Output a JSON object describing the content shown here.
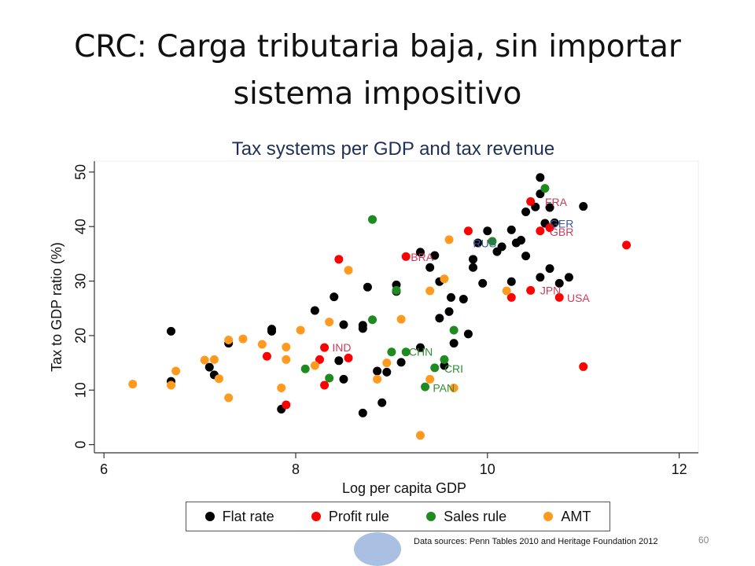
{
  "slide": {
    "title_line1": "CRC: Carga tributaria baja, sin importar",
    "title_line2": "sistema impositivo",
    "page_number": "60",
    "source": "Data sources: Penn Tables 2010 and Heritage Foundation 2012"
  },
  "chart_data": {
    "type": "scatter",
    "title": "Tax systems per GDP and tax revenue",
    "xlabel": "Log per capita GDP",
    "ylabel": "Tax to GDP ratio (%)",
    "xlim": [
      5.9,
      12.2
    ],
    "ylim": [
      -1.5,
      52
    ],
    "xticks": [
      6,
      8,
      10,
      12
    ],
    "yticks": [
      0,
      10,
      20,
      30,
      40,
      50
    ],
    "grid": false,
    "legend_position": "bottom",
    "series": [
      {
        "name": "Flat rate",
        "color": "#000000",
        "points": [
          [
            6.7,
            20.8
          ],
          [
            6.7,
            11.6
          ],
          [
            7.1,
            14.2
          ],
          [
            7.15,
            12.8
          ],
          [
            7.3,
            18.6
          ],
          [
            7.75,
            21.2
          ],
          [
            7.75,
            20.8
          ],
          [
            7.85,
            6.5
          ],
          [
            8.2,
            24.6
          ],
          [
            8.4,
            27.1
          ],
          [
            8.45,
            15.4
          ],
          [
            8.5,
            12
          ],
          [
            8.5,
            22
          ],
          [
            8.7,
            21.9
          ],
          [
            8.7,
            21.3
          ],
          [
            8.7,
            5.8
          ],
          [
            8.75,
            28.9
          ],
          [
            8.85,
            13.5
          ],
          [
            8.9,
            7.7
          ],
          [
            8.95,
            13.3
          ],
          [
            9.05,
            29.3
          ],
          [
            9.05,
            28.1
          ],
          [
            9.1,
            15.1
          ],
          [
            9.3,
            35.3
          ],
          [
            9.3,
            17.8
          ],
          [
            9.4,
            32.5
          ],
          [
            9.45,
            34.7
          ],
          [
            9.5,
            29.9
          ],
          [
            9.5,
            23.2
          ],
          [
            9.55,
            14.5
          ],
          [
            9.6,
            24.4
          ],
          [
            9.62,
            27
          ],
          [
            9.65,
            18.6
          ],
          [
            9.75,
            26.7
          ],
          [
            9.8,
            20.3
          ],
          [
            9.85,
            34
          ],
          [
            9.85,
            32.5
          ],
          [
            9.9,
            37
          ],
          [
            9.95,
            29.6
          ],
          [
            10,
            39.2
          ],
          [
            10.1,
            35.4
          ],
          [
            10.15,
            36.3
          ],
          [
            10.25,
            29.9
          ],
          [
            10.25,
            39.4
          ],
          [
            10.3,
            37
          ],
          [
            10.35,
            37.5
          ],
          [
            10.4,
            34.6
          ],
          [
            10.4,
            42.7
          ],
          [
            10.5,
            43.6
          ],
          [
            10.55,
            49
          ],
          [
            10.55,
            46
          ],
          [
            10.6,
            40.6
          ],
          [
            10.55,
            30.7
          ],
          [
            10.65,
            32.3
          ],
          [
            10.65,
            43.5
          ],
          [
            10.7,
            40.7
          ],
          [
            10.75,
            29.6
          ],
          [
            10.85,
            30.7
          ],
          [
            11,
            43.7
          ]
        ]
      },
      {
        "name": "Profit rule",
        "color": "#ff0000",
        "points": [
          [
            7.7,
            16.2
          ],
          [
            7.9,
            7.3
          ],
          [
            8.25,
            15.6
          ],
          [
            8.3,
            17.8
          ],
          [
            8.3,
            10.9
          ],
          [
            8.45,
            34
          ],
          [
            8.55,
            15.9
          ],
          [
            9.15,
            34.5
          ],
          [
            9.8,
            39.2
          ],
          [
            10.25,
            27
          ],
          [
            10.45,
            28.3
          ],
          [
            10.45,
            44.6
          ],
          [
            10.55,
            39.2
          ],
          [
            10.65,
            39.8
          ],
          [
            10.75,
            27
          ],
          [
            11,
            14.3
          ],
          [
            11.45,
            36.6
          ]
        ]
      },
      {
        "name": "Sales rule",
        "color": "#1f8a1f",
        "points": [
          [
            8.1,
            13.9
          ],
          [
            8.35,
            12.2
          ],
          [
            8.8,
            41.3
          ],
          [
            8.8,
            22.9
          ],
          [
            9.0,
            17
          ],
          [
            9.05,
            28.3
          ],
          [
            9.15,
            17
          ],
          [
            9.35,
            10.6
          ],
          [
            9.45,
            14.1
          ],
          [
            9.55,
            15.6
          ],
          [
            9.65,
            21
          ],
          [
            10.05,
            37.3
          ],
          [
            10.6,
            47
          ]
        ]
      },
      {
        "name": "AMT",
        "color": "#ff9a1f",
        "points": [
          [
            6.3,
            11.1
          ],
          [
            6.7,
            10.9
          ],
          [
            6.75,
            13.5
          ],
          [
            7.05,
            15.5
          ],
          [
            7.15,
            15.6
          ],
          [
            7.2,
            12.1
          ],
          [
            7.3,
            19.2
          ],
          [
            7.3,
            8.6
          ],
          [
            7.45,
            19.4
          ],
          [
            7.65,
            18.4
          ],
          [
            7.85,
            10.4
          ],
          [
            7.9,
            17.9
          ],
          [
            7.9,
            15.6
          ],
          [
            8.05,
            21
          ],
          [
            8.2,
            14.5
          ],
          [
            8.35,
            22.5
          ],
          [
            8.55,
            32
          ],
          [
            8.85,
            12
          ],
          [
            8.95,
            15
          ],
          [
            9.1,
            23
          ],
          [
            9.3,
            1.7
          ],
          [
            9.4,
            28.2
          ],
          [
            9.4,
            12
          ],
          [
            9.55,
            30.4
          ],
          [
            9.6,
            37.6
          ],
          [
            9.65,
            10.4
          ],
          [
            10.2,
            28.2
          ]
        ]
      }
    ],
    "annotations": [
      {
        "text": "FRA",
        "x": 10.6,
        "y": 44.5,
        "color": "#cc3b5a"
      },
      {
        "text": "GER",
        "x": 10.65,
        "y": 40.5,
        "color": "#3c5a9c"
      },
      {
        "text": "GBR",
        "x": 10.65,
        "y": 39.0,
        "color": "#cc3b5a"
      },
      {
        "text": "RUS",
        "x": 9.85,
        "y": 36.9,
        "color": "#3c5a9c"
      },
      {
        "text": "BRA",
        "x": 9.2,
        "y": 34.4,
        "color": "#cc3b5a"
      },
      {
        "text": "JPN",
        "x": 10.55,
        "y": 28.3,
        "color": "#cc3b5a"
      },
      {
        "text": "USA",
        "x": 10.83,
        "y": 26.9,
        "color": "#cc3b5a"
      },
      {
        "text": "IND",
        "x": 8.38,
        "y": 17.8,
        "color": "#cc3b5a"
      },
      {
        "text": "CHN",
        "x": 9.18,
        "y": 17.0,
        "color": "#2f8f2f"
      },
      {
        "text": "CRI",
        "x": 9.55,
        "y": 13.9,
        "color": "#2f8f2f"
      },
      {
        "text": "PAN",
        "x": 9.43,
        "y": 10.4,
        "color": "#2f8f2f"
      }
    ]
  }
}
